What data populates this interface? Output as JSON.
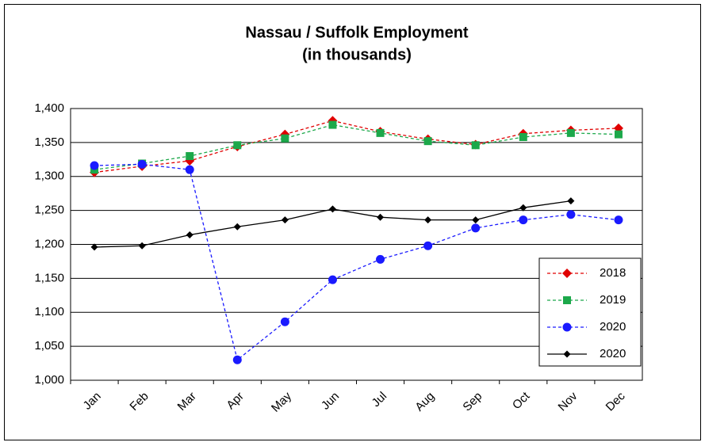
{
  "chart_data": {
    "type": "line",
    "title": "Nassau / Suffolk Employment",
    "subtitle": "(in thousands)",
    "categories": [
      "Jan",
      "Feb",
      "Mar",
      "Apr",
      "May",
      "Jun",
      "Jul",
      "Aug",
      "Sep",
      "Oct",
      "Nov",
      "Dec"
    ],
    "series": [
      {
        "name": "2018",
        "color": "#e00000",
        "line_style": "dashed",
        "marker": "diamond",
        "values": [
          1306,
          1315,
          1323,
          1344,
          1362,
          1382,
          1366,
          1355,
          1347,
          1363,
          1368,
          1371
        ]
      },
      {
        "name": "2019",
        "color": "#1ca84a",
        "line_style": "dashed",
        "marker": "square",
        "values": [
          1310,
          1319,
          1330,
          1346,
          1356,
          1376,
          1364,
          1352,
          1346,
          1358,
          1364,
          1362
        ]
      },
      {
        "name": "2020",
        "color": "#1a1aff",
        "line_style": "dashed",
        "marker": "circle",
        "values": [
          1316,
          1318,
          1310,
          1030,
          1086,
          1148,
          1178,
          1198,
          1224,
          1236,
          1244,
          1236
        ]
      },
      {
        "name": "2020",
        "color": "#000000",
        "line_style": "solid",
        "marker": "diamond",
        "values": [
          1196,
          1198,
          1214,
          1226,
          1236,
          1252,
          1240,
          1236,
          1236,
          1254,
          1264,
          null
        ]
      }
    ],
    "ylim": [
      1000,
      1400
    ],
    "yticks": [
      {
        "value": 1000,
        "label": "1,000"
      },
      {
        "value": 1050,
        "label": "1,050"
      },
      {
        "value": 1100,
        "label": "1,100"
      },
      {
        "value": 1150,
        "label": "1,150"
      },
      {
        "value": 1200,
        "label": "1,200"
      },
      {
        "value": 1250,
        "label": "1,250"
      },
      {
        "value": 1300,
        "label": "1,300"
      },
      {
        "value": 1350,
        "label": "1,350"
      },
      {
        "value": 1400,
        "label": "1,400"
      }
    ],
    "grid": true,
    "legend": "lower right"
  }
}
